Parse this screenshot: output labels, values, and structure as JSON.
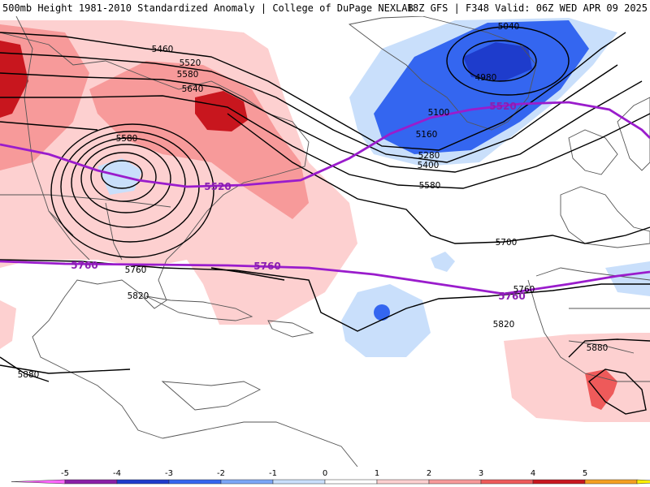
{
  "header": {
    "title_left": "500mb Height 1981-2010 Standardized Anomaly | College of DuPage NEXLAB",
    "title_right": "18Z GFS | F348 Valid: 06Z WED APR 09 2025"
  },
  "contour_labels": {
    "black": [
      "5040",
      "4980",
      "5460",
      "5520",
      "5580",
      "5640",
      "5580",
      "5100",
      "5160",
      "5280",
      "5400",
      "5580",
      "5700",
      "5760",
      "5820",
      "5760",
      "5820",
      "5880",
      "5880"
    ],
    "purple": [
      "5520",
      "5520",
      "5760",
      "5760",
      "5760"
    ]
  },
  "colorbar": {
    "ticks": [
      "-5",
      "-4",
      "-3",
      "-2",
      "-1",
      "0",
      "1",
      "2",
      "3",
      "4",
      "5"
    ],
    "colors": [
      "#ff66ff",
      "#8a1fa8",
      "#1e3ccc",
      "#3466f0",
      "#7aa6f7",
      "#c9dffb",
      "#ffffff",
      "#fdd0d0",
      "#f79a9a",
      "#ee5a5a",
      "#c8161e",
      "#f5a020",
      "#fff000"
    ]
  }
}
